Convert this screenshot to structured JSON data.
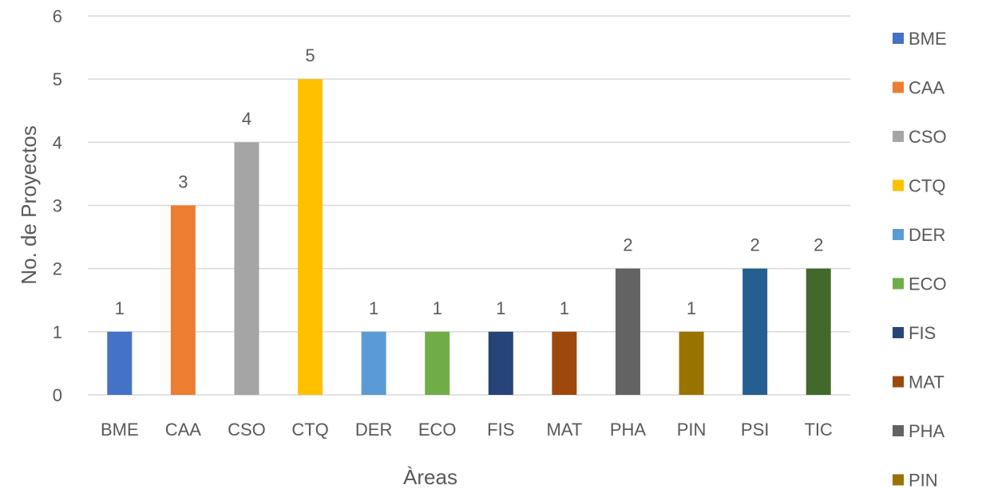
{
  "chart_data": {
    "type": "bar",
    "categories": [
      "BME",
      "CAA",
      "CSO",
      "CTQ",
      "DER",
      "ECO",
      "FIS",
      "MAT",
      "PHA",
      "PIN",
      "PSI",
      "TIC"
    ],
    "values": [
      1,
      3,
      4,
      5,
      1,
      1,
      1,
      1,
      2,
      1,
      2,
      2
    ],
    "colors": [
      "#4472c4",
      "#ed7d31",
      "#a5a5a5",
      "#ffc000",
      "#5b9bd5",
      "#70ad47",
      "#264478",
      "#9e480e",
      "#636363",
      "#997300",
      "#255e91",
      "#43682b"
    ],
    "xlabel": "Àreas",
    "ylabel": "No. de Proyectos",
    "ylim": [
      0,
      6
    ],
    "yticks": [
      0,
      1,
      2,
      3,
      4,
      5,
      6
    ],
    "grid": true,
    "legend": {
      "position": "right",
      "entries": [
        "BME",
        "CAA",
        "CSO",
        "CTQ",
        "DER",
        "ECO",
        "FIS",
        "MAT",
        "PHA",
        "PIN"
      ]
    },
    "data_labels": true
  }
}
